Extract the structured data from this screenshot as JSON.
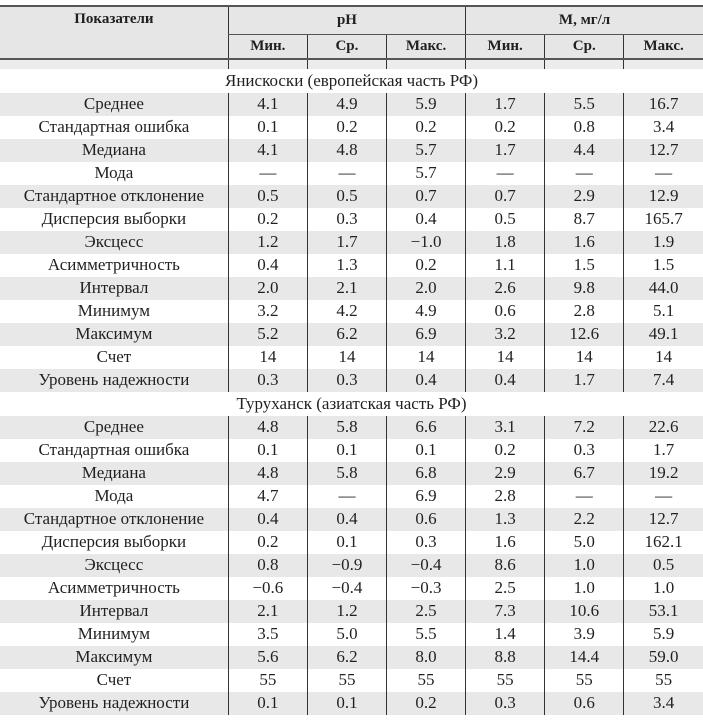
{
  "header": {
    "indicator": "Показатели",
    "group_ph": "pH",
    "group_m": "M, мг/л",
    "sub": [
      "Мин.",
      "Ср.",
      "Макс.",
      "Мин.",
      "Ср.",
      "Макс."
    ]
  },
  "sections": [
    {
      "title": "Янискоски (европейская часть РФ)",
      "rows": [
        {
          "label": "Среднее",
          "values": [
            "4.1",
            "4.9",
            "5.9",
            "1.7",
            "5.5",
            "16.7"
          ]
        },
        {
          "label": "Стандартная ошибка",
          "values": [
            "0.1",
            "0.2",
            "0.2",
            "0.2",
            "0.8",
            "3.4"
          ]
        },
        {
          "label": "Медиана",
          "values": [
            "4.1",
            "4.8",
            "5.7",
            "1.7",
            "4.4",
            "12.7"
          ]
        },
        {
          "label": "Мода",
          "values": [
            "—",
            "—",
            "5.7",
            "—",
            "—",
            "—"
          ]
        },
        {
          "label": "Стандартное отклонение",
          "values": [
            "0.5",
            "0.5",
            "0.7",
            "0.7",
            "2.9",
            "12.9"
          ]
        },
        {
          "label": "Дисперсия выборки",
          "values": [
            "0.2",
            "0.3",
            "0.4",
            "0.5",
            "8.7",
            "165.7"
          ]
        },
        {
          "label": "Эксцесс",
          "values": [
            "1.2",
            "1.7",
            "−1.0",
            "1.8",
            "1.6",
            "1.9"
          ]
        },
        {
          "label": "Асимметричность",
          "values": [
            "0.4",
            "1.3",
            "0.2",
            "1.1",
            "1.5",
            "1.5"
          ]
        },
        {
          "label": "Интервал",
          "values": [
            "2.0",
            "2.1",
            "2.0",
            "2.6",
            "9.8",
            "44.0"
          ]
        },
        {
          "label": "Минимум",
          "values": [
            "3.2",
            "4.2",
            "4.9",
            "0.6",
            "2.8",
            "5.1"
          ]
        },
        {
          "label": "Максимум",
          "values": [
            "5.2",
            "6.2",
            "6.9",
            "3.2",
            "12.6",
            "49.1"
          ]
        },
        {
          "label": "Счет",
          "values": [
            "14",
            "14",
            "14",
            "14",
            "14",
            "14"
          ]
        },
        {
          "label": "Уровень надежности",
          "values": [
            "0.3",
            "0.3",
            "0.4",
            "0.4",
            "1.7",
            "7.4"
          ]
        }
      ]
    },
    {
      "title": "Туруханск (азиатская часть РФ)",
      "rows": [
        {
          "label": "Среднее",
          "values": [
            "4.8",
            "5.8",
            "6.6",
            "3.1",
            "7.2",
            "22.6"
          ]
        },
        {
          "label": "Стандартная ошибка",
          "values": [
            "0.1",
            "0.1",
            "0.1",
            "0.2",
            "0.3",
            "1.7"
          ]
        },
        {
          "label": "Медиана",
          "values": [
            "4.8",
            "5.8",
            "6.8",
            "2.9",
            "6.7",
            "19.2"
          ]
        },
        {
          "label": "Мода",
          "values": [
            "4.7",
            "—",
            "6.9",
            "2.8",
            "—",
            "—"
          ]
        },
        {
          "label": "Стандартное отклонение",
          "values": [
            "0.4",
            "0.4",
            "0.6",
            "1.3",
            "2.2",
            "12.7"
          ]
        },
        {
          "label": "Дисперсия выборки",
          "values": [
            "0.2",
            "0.1",
            "0.3",
            "1.6",
            "5.0",
            "162.1"
          ]
        },
        {
          "label": "Эксцесс",
          "values": [
            "0.8",
            "−0.9",
            "−0.4",
            "8.6",
            "1.0",
            "0.5"
          ]
        },
        {
          "label": "Асимметричность",
          "values": [
            "−0.6",
            "−0.4",
            "−0.3",
            "2.5",
            "1.0",
            "1.0"
          ]
        },
        {
          "label": "Интервал",
          "values": [
            "2.1",
            "1.2",
            "2.5",
            "7.3",
            "10.6",
            "53.1"
          ]
        },
        {
          "label": "Минимум",
          "values": [
            "3.5",
            "5.0",
            "5.5",
            "1.4",
            "3.9",
            "5.9"
          ]
        },
        {
          "label": "Максимум",
          "values": [
            "5.6",
            "6.2",
            "8.0",
            "8.8",
            "14.4",
            "59.0"
          ]
        },
        {
          "label": "Счет",
          "values": [
            "55",
            "55",
            "55",
            "55",
            "55",
            "55"
          ]
        },
        {
          "label": "Уровень надежности",
          "values": [
            "0.1",
            "0.1",
            "0.2",
            "0.3",
            "0.6",
            "3.4"
          ]
        }
      ]
    }
  ]
}
